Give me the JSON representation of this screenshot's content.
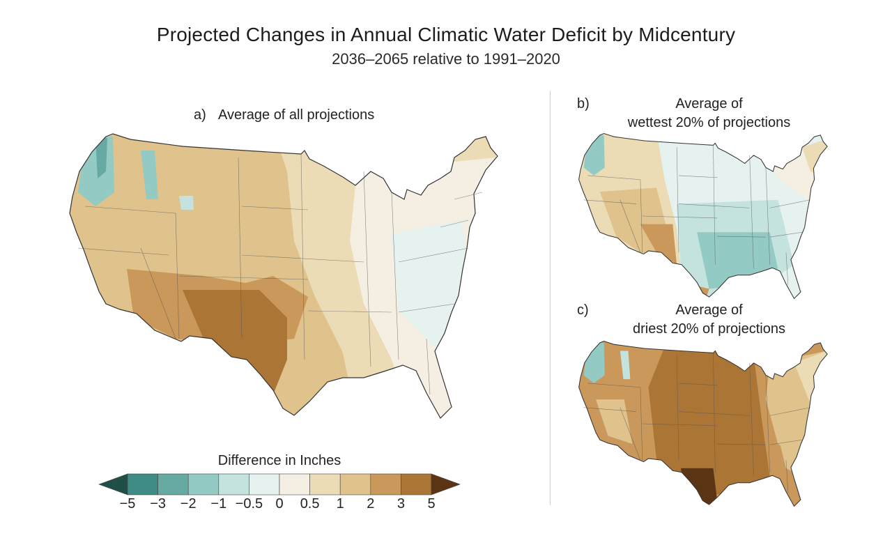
{
  "title": "Projected Changes in Annual Climatic Water Deficit by Midcentury",
  "subtitle": "2036–2065 relative to 1991–2020",
  "panels": {
    "a": {
      "letter": "a)",
      "title": "Average of all projections"
    },
    "b": {
      "letter": "b)",
      "title_line1": "Average of",
      "title_line2": "wettest 20% of projections"
    },
    "c": {
      "letter": "c)",
      "title_line1": "Average of",
      "title_line2": "driest 20% of projections"
    }
  },
  "legend": {
    "title": "Difference in Inches",
    "ticks": [
      "−5",
      "−3",
      "−2",
      "−1",
      "−0.5",
      "0",
      "0.5",
      "1",
      "2",
      "3",
      "5"
    ],
    "colors": {
      "lt_minus5": "#1f4f48",
      "m5_m3": "#3f8c84",
      "m3_m2": "#66aaa3",
      "m2_m1": "#93cac4",
      "m1_m05": "#c4e3df",
      "m05_0": "#e6f2f0",
      "0_05": "#f4efe2",
      "05_1": "#ecdcb6",
      "1_2": "#dfc28c",
      "2_3": "#c9985a",
      "3_5": "#ab7535",
      "gt_5": "#5b3414"
    }
  }
}
